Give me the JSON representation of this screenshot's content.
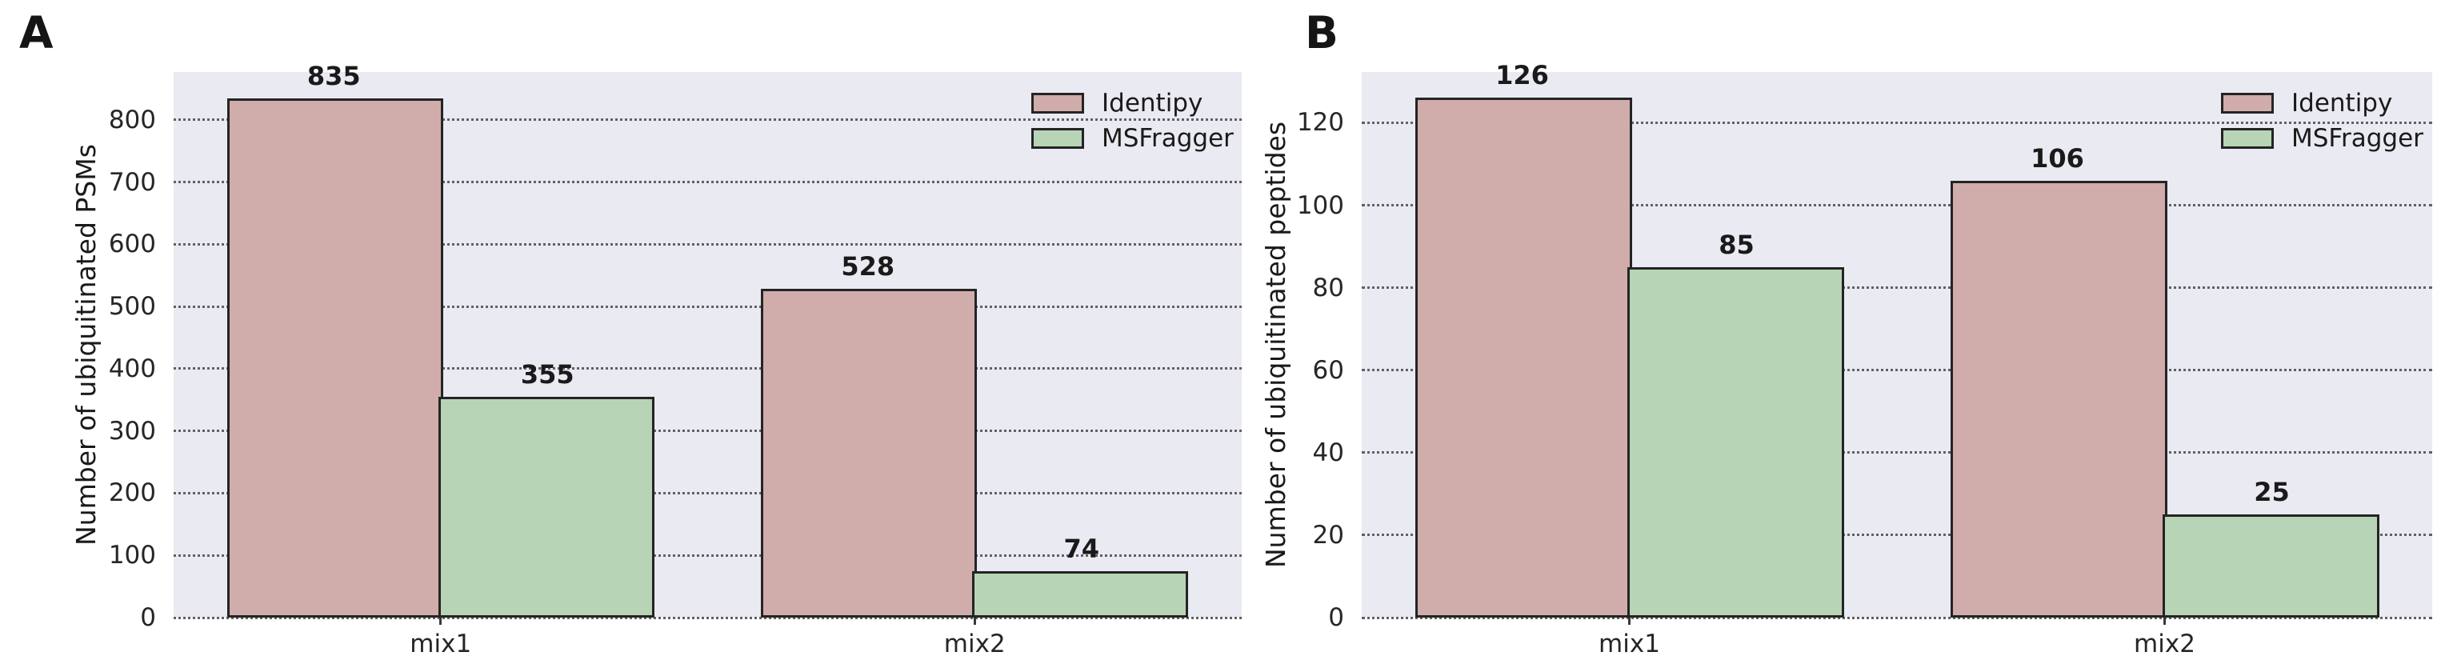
{
  "figure": {
    "background": "#ffffff",
    "plot_background": "#eaeaf2",
    "gridline_color": "#616161",
    "bar_edge_color": "#242424",
    "text_color": "#1a1a1a"
  },
  "chart_data": [
    {
      "type": "bar",
      "panel_label": "A",
      "ylabel": "Number of ubiquitinated PSMs",
      "xlabel": "",
      "categories": [
        "mix1",
        "mix2"
      ],
      "series": [
        {
          "name": "Identipy",
          "color": "#d0acaa",
          "values": [
            835,
            528
          ]
        },
        {
          "name": "MSFragger",
          "color": "#b8d4b6",
          "values": [
            355,
            74
          ]
        }
      ],
      "bar_value_labels": [
        [
          835,
          528
        ],
        [
          355,
          74
        ]
      ],
      "ylim": [
        0,
        877
      ],
      "yticks": [
        0,
        100,
        200,
        300,
        400,
        500,
        600,
        700,
        800
      ],
      "grid": "horizontal-dotted",
      "legend_position": "upper right"
    },
    {
      "type": "bar",
      "panel_label": "B",
      "ylabel": "Number of ubiquitinated peptides",
      "xlabel": "",
      "categories": [
        "mix1",
        "mix2"
      ],
      "series": [
        {
          "name": "Identipy",
          "color": "#d0acaa",
          "values": [
            126,
            106
          ]
        },
        {
          "name": "MSFragger",
          "color": "#b8d4b6",
          "values": [
            85,
            25
          ]
        }
      ],
      "bar_value_labels": [
        [
          126,
          106
        ],
        [
          85,
          25
        ]
      ],
      "ylim": [
        0,
        132.3
      ],
      "yticks": [
        0,
        20,
        40,
        60,
        80,
        100,
        120
      ],
      "grid": "horizontal-dotted",
      "legend_position": "upper right"
    }
  ]
}
